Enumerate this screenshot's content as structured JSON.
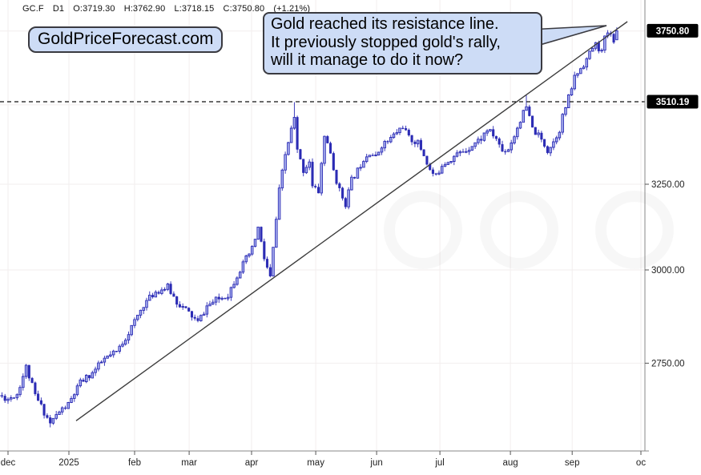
{
  "header": {
    "items": [
      "GC.F",
      "D1",
      "O:3719.30",
      "H:3762.90",
      "L:3718.15",
      "C:3750.80",
      "(+1.21%)"
    ]
  },
  "brand": {
    "label": "GoldPriceForecast.com"
  },
  "annotation": {
    "lines": [
      "Gold reached its resistance line.",
      "It previously stopped gold's rally,",
      "will it manage to do it now?"
    ]
  },
  "chart_data": {
    "type": "candlestick",
    "symbol": "GC.F",
    "timeframe": "D1",
    "last_candle": {
      "open": 3719.3,
      "high": 3762.9,
      "low": 3718.15,
      "close": 3750.8,
      "change_pct": "+1.21%"
    },
    "scale": "log",
    "x_axis": {
      "months": [
        {
          "label": "dec",
          "day": 0
        },
        {
          "label": "2025",
          "day": 20.2
        },
        {
          "label": "feb",
          "day": 42
        },
        {
          "label": "mar",
          "day": 60.1
        },
        {
          "label": "apr",
          "day": 80.8
        },
        {
          "label": "may",
          "day": 102.1
        },
        {
          "label": "jun",
          "day": 122.3
        },
        {
          "label": "jul",
          "day": 143.3
        },
        {
          "label": "aug",
          "day": 166.7
        },
        {
          "label": "sep",
          "day": 187.2
        },
        {
          "label": "oc",
          "day": 210
        }
      ]
    },
    "y_axis": {
      "tick_labels": [
        {
          "label": "3250.00",
          "price": 3250
        },
        {
          "label": "3000.00",
          "price": 3000
        },
        {
          "label": "2750.00",
          "price": 2750
        }
      ],
      "badges": [
        {
          "label": "3750.80",
          "price": 3750.8
        },
        {
          "label": "3510.19",
          "price": 3510.19
        }
      ],
      "gridline_prices": [
        3750,
        3500,
        3250,
        3000,
        2750
      ],
      "dashed_level": 3510.19
    },
    "trendline": {
      "from": {
        "day": 22.6,
        "price": 2606
      },
      "to": {
        "day": 205.5,
        "price": 3783
      }
    },
    "day_start": -3,
    "day_end": 202,
    "anchors": [
      [
        -3,
        2668
      ],
      [
        0,
        2660
      ],
      [
        3,
        2672
      ],
      [
        6,
        2740
      ],
      [
        9,
        2668
      ],
      [
        14,
        2600
      ],
      [
        17,
        2628
      ],
      [
        20,
        2645
      ],
      [
        24,
        2700
      ],
      [
        28,
        2725
      ],
      [
        32,
        2760
      ],
      [
        36,
        2778
      ],
      [
        40,
        2830
      ],
      [
        42,
        2858
      ],
      [
        45,
        2905
      ],
      [
        49,
        2940
      ],
      [
        53,
        2952
      ],
      [
        56,
        2912
      ],
      [
        60,
        2882
      ],
      [
        63,
        2856
      ],
      [
        66,
        2900
      ],
      [
        69,
        2916
      ],
      [
        73,
        2932
      ],
      [
        76,
        2986
      ],
      [
        79,
        3030
      ],
      [
        81,
        3058
      ],
      [
        83,
        3120
      ],
      [
        85,
        3032
      ],
      [
        87,
        2978
      ],
      [
        88,
        3060
      ],
      [
        90,
        3230
      ],
      [
        92,
        3340
      ],
      [
        94,
        3420
      ],
      [
        95,
        3455
      ],
      [
        96,
        3352
      ],
      [
        98,
        3292
      ],
      [
        100,
        3322
      ],
      [
        101,
        3242
      ],
      [
        103,
        3228
      ],
      [
        105,
        3398
      ],
      [
        106,
        3382
      ],
      [
        108,
        3292
      ],
      [
        110,
        3230
      ],
      [
        112,
        3192
      ],
      [
        114,
        3262
      ],
      [
        116,
        3292
      ],
      [
        118,
        3330
      ],
      [
        120,
        3350
      ],
      [
        122,
        3332
      ],
      [
        124,
        3372
      ],
      [
        126,
        3382
      ],
      [
        128,
        3402
      ],
      [
        131,
        3432
      ],
      [
        133,
        3392
      ],
      [
        136,
        3378
      ],
      [
        138,
        3340
      ],
      [
        140,
        3292
      ],
      [
        142,
        3272
      ],
      [
        144,
        3312
      ],
      [
        146,
        3322
      ],
      [
        149,
        3342
      ],
      [
        152,
        3356
      ],
      [
        154,
        3372
      ],
      [
        157,
        3392
      ],
      [
        159,
        3420
      ],
      [
        162,
        3392
      ],
      [
        164,
        3352
      ],
      [
        166,
        3360
      ],
      [
        168,
        3402
      ],
      [
        170,
        3452
      ],
      [
        172,
        3492
      ],
      [
        174,
        3422
      ],
      [
        176,
        3400
      ],
      [
        178,
        3372
      ],
      [
        179,
        3355
      ],
      [
        181,
        3382
      ],
      [
        183,
        3422
      ],
      [
        184,
        3462
      ],
      [
        186,
        3522
      ],
      [
        188,
        3592
      ],
      [
        190,
        3622
      ],
      [
        192,
        3652
      ],
      [
        194,
        3692
      ],
      [
        195,
        3702
      ],
      [
        197,
        3678
      ],
      [
        198,
        3722
      ],
      [
        199,
        3745
      ],
      [
        201,
        3722
      ],
      [
        202,
        3742
      ]
    ],
    "overrides": {
      "14": {
        "low": 2590
      },
      "95": {
        "high": 3509
      },
      "172": {
        "high": 3534
      },
      "202": {
        "open": 3719.3,
        "high": 3762.9,
        "low": 3718.15,
        "close": 3750.8
      }
    },
    "colors": {
      "up_fill": "#a9b1ef",
      "up_stroke": "#2b2bb4",
      "down": "#2b2bb4",
      "trendline": "#3c3c3c",
      "dashed_line": "#111111",
      "badge_bg": "#000000",
      "badge_text": "#ffffff",
      "grid": "#f2eeee",
      "axis": "#8a8a8a",
      "tick": "#555555",
      "label_text": "#222222",
      "annotation_bg": "#cddcf6",
      "annotation_border": "#3a3a40"
    }
  }
}
